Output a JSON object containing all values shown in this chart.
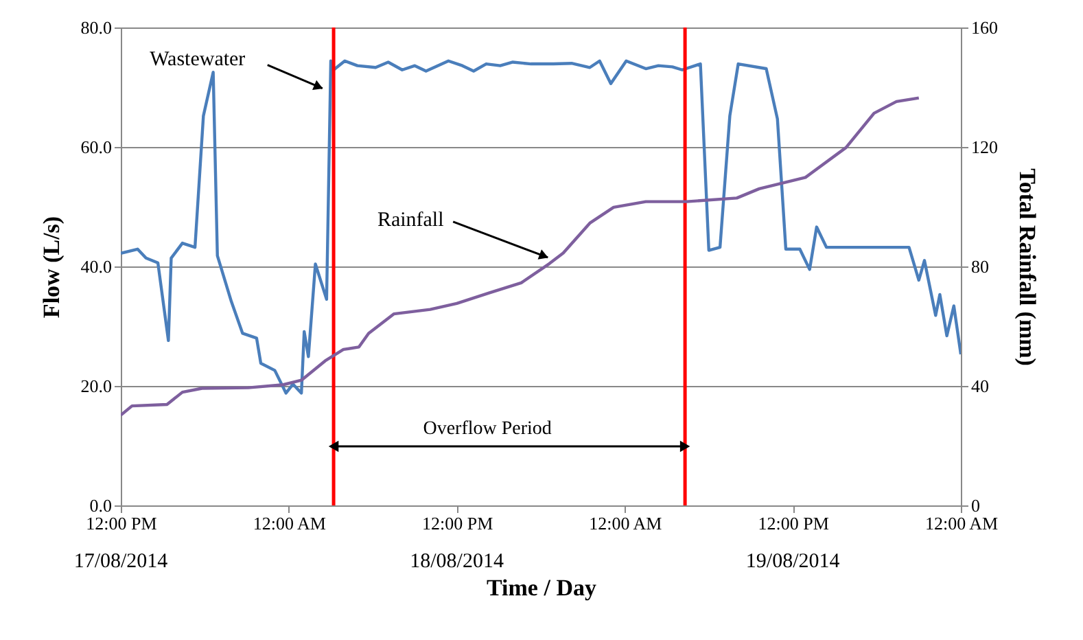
{
  "chart_data": {
    "type": "line",
    "xlabel": "Time / Day",
    "ylabel": "Flow (L/s)",
    "y2label": "Total Rainfall (mm)",
    "xlim": [
      "2014-08-17T12:00",
      "2014-08-20T00:00"
    ],
    "xticks": [
      {
        "value": "2014-08-17T12:00",
        "label": "12:00 PM"
      },
      {
        "value": "2014-08-18T00:00",
        "label": "12:00 AM"
      },
      {
        "value": "2014-08-18T12:00",
        "label": "12:00 PM"
      },
      {
        "value": "2014-08-19T00:00",
        "label": "12:00 AM"
      },
      {
        "value": "2014-08-19T12:00",
        "label": "12:00 PM"
      },
      {
        "value": "2014-08-20T00:00",
        "label": "12:00 AM"
      }
    ],
    "ylim": [
      0,
      80
    ],
    "yticks": [
      {
        "value": 0,
        "label": "0.0"
      },
      {
        "value": 20,
        "label": "20.0"
      },
      {
        "value": 40,
        "label": "40.0"
      },
      {
        "value": 60,
        "label": "60.0"
      },
      {
        "value": 80,
        "label": "80.0"
      }
    ],
    "y2lim": [
      0,
      160
    ],
    "y2ticks": [
      0,
      40,
      80,
      120,
      160
    ],
    "grid": "y",
    "marker": "none",
    "line_style": "solid",
    "series": [
      {
        "color": "#4a7ebb",
        "x": [
          "2014-08-17T12:00",
          "2014-08-17T13:12",
          "2014-08-17T13:48",
          "2014-08-17T14:39",
          "2014-08-17T15:24",
          "2014-08-17T15:36",
          "2014-08-17T16:24",
          "2014-08-17T17:18",
          "2014-08-17T17:54",
          "2014-08-17T18:36",
          "2014-08-17T18:54",
          "2014-08-17T19:54",
          "2014-08-17T20:42",
          "2014-08-17T21:42",
          "2014-08-17T22:00",
          "2014-08-17T23:00",
          "2014-08-17T23:48",
          "2014-08-18T00:18",
          "2014-08-18T00:54",
          "2014-08-18T01:06",
          "2014-08-18T01:24",
          "2014-08-18T01:54",
          "2014-08-18T02:42",
          "2014-08-18T03:00",
          "2014-08-18T03:12",
          "2014-08-18T04:00",
          "2014-08-18T04:54",
          "2014-08-18T06:12",
          "2014-08-18T07:06",
          "2014-08-18T08:06",
          "2014-08-18T09:00",
          "2014-08-18T09:48",
          "2014-08-18T11:24",
          "2014-08-18T12:24",
          "2014-08-18T13:12",
          "2014-08-18T14:06",
          "2014-08-18T15:06",
          "2014-08-18T16:00",
          "2014-08-18T17:18",
          "2014-08-18T18:54",
          "2014-08-18T20:12",
          "2014-08-18T21:30",
          "2014-08-18T22:12",
          "2014-08-18T23:00",
          "2014-08-19T00:06",
          "2014-08-19T01:30",
          "2014-08-19T02:24",
          "2014-08-19T03:24",
          "2014-08-19T04:06",
          "2014-08-19T05:24",
          "2014-08-19T06:00",
          "2014-08-19T06:48",
          "2014-08-19T07:30",
          "2014-08-19T08:06",
          "2014-08-19T10:06",
          "2014-08-19T10:54",
          "2014-08-19T11:30",
          "2014-08-19T12:30",
          "2014-08-19T13:12",
          "2014-08-19T13:42",
          "2014-08-19T14:24",
          "2014-08-19T20:18",
          "2014-08-19T21:00",
          "2014-08-19T21:24",
          "2014-08-19T22:12",
          "2014-08-19T22:30",
          "2014-08-19T23:00",
          "2014-08-19T23:30",
          "2014-08-20T00:00"
        ],
        "values": [
          42.2,
          42.9,
          41.4,
          40.6,
          27.6,
          41.4,
          43.9,
          43.2,
          65.2,
          72.5,
          41.8,
          34.1,
          28.8,
          28.0,
          23.8,
          22.6,
          18.8,
          20.3,
          18.8,
          29.1,
          24.9,
          40.4,
          34.5,
          74.4,
          72.9,
          74.4,
          73.6,
          73.3,
          74.2,
          72.9,
          73.6,
          72.7,
          74.4,
          73.6,
          72.7,
          73.9,
          73.6,
          74.2,
          73.9,
          73.9,
          74.0,
          73.3,
          74.4,
          70.6,
          74.4,
          73.1,
          73.6,
          73.4,
          72.9,
          73.9,
          42.7,
          43.2,
          65.2,
          73.9,
          73.1,
          64.7,
          42.9,
          42.9,
          39.5,
          46.6,
          43.2,
          43.2,
          37.7,
          41.0,
          31.8,
          35.3,
          28.4,
          33.4,
          25.3
        ]
      },
      {
        "color": "#7e5f9e",
        "axis": "y2",
        "x": [
          "2014-08-17T12:00",
          "2014-08-17T12:48",
          "2014-08-17T15:18",
          "2014-08-17T16:24",
          "2014-08-17T17:48",
          "2014-08-17T21:06",
          "2014-08-17T23:36",
          "2014-08-18T00:54",
          "2014-08-18T02:36",
          "2014-08-18T03:54",
          "2014-08-18T05:00",
          "2014-08-18T05:42",
          "2014-08-18T07:30",
          "2014-08-18T10:06",
          "2014-08-18T12:00",
          "2014-08-18T14:18",
          "2014-08-18T16:36",
          "2014-08-18T18:36",
          "2014-08-18T19:36",
          "2014-08-18T21:30",
          "2014-08-18T23:12",
          "2014-08-19T01:30",
          "2014-08-19T04:24",
          "2014-08-19T08:00",
          "2014-08-19T09:36",
          "2014-08-19T12:54",
          "2014-08-19T15:48",
          "2014-08-19T17:48",
          "2014-08-19T19:24",
          "2014-08-19T21:00"
        ],
        "values": [
          30.2,
          33.3,
          33.8,
          37.9,
          39.2,
          39.4,
          40.4,
          41.9,
          48.4,
          52.2,
          53.0,
          57.6,
          64.1,
          65.6,
          67.6,
          71.1,
          74.5,
          80.9,
          84.5,
          94.5,
          99.8,
          101.7,
          101.7,
          102.9,
          106.0,
          109.8,
          119.8,
          131.3,
          135.2,
          136.4
        ]
      }
    ],
    "ref_lines": [
      {
        "axis": "x",
        "value": "2014-08-18T03:12",
        "color": "#ff0000"
      },
      {
        "axis": "x",
        "value": "2014-08-19T04:18",
        "color": "#ff0000"
      }
    ],
    "annotations": [
      {
        "text": "Wastewater",
        "x": "2014-08-18T02:24",
        "y": 69.8
      },
      {
        "text": "Rainfall",
        "x": "2014-08-18T18:30",
        "y": 41.5
      },
      "Overflow Period",
      "17/08/2014",
      "18/08/2014",
      "19/08/2014"
    ]
  }
}
